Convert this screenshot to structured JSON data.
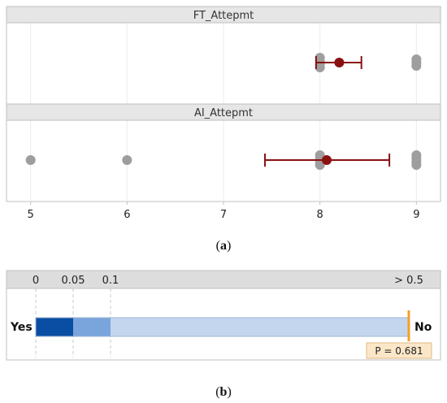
{
  "chart_data": [
    {
      "type": "scatter",
      "panels": [
        {
          "label": "FT_Attepmt",
          "points": [
            8,
            8,
            8,
            8,
            9,
            9,
            9
          ],
          "mean": 8.2,
          "ci": [
            7.96,
            8.43
          ]
        },
        {
          "label": "AI_Attepmt",
          "points": [
            5,
            6,
            8,
            8,
            8,
            8,
            9,
            9,
            9,
            9
          ],
          "mean": 8.07,
          "ci": [
            7.43,
            8.72
          ]
        }
      ],
      "xticks": [
        "5",
        "6",
        "7",
        "8",
        "9"
      ],
      "xlim": [
        4.75,
        9.25
      ],
      "grid": true,
      "colors": {
        "points": "#9e9e9e",
        "mean": "#8b1111",
        "strip": "#e6e6e6"
      },
      "caption": "a"
    },
    {
      "type": "bar",
      "scale_ticks": [
        "0",
        "0.05",
        "0.1",
        "> 0.5"
      ],
      "scale_values": [
        0,
        0.05,
        0.1,
        0.5
      ],
      "left_label": "Yes",
      "right_label": "No",
      "p_value": 0.681,
      "p_label": "P = 0.681",
      "colors": {
        "dark": "#0a4ea3",
        "mid": "#7aa5dc",
        "light": "#c3d6ee",
        "marker": "#f0a02a",
        "label_bg": "#fbe7c8"
      },
      "caption": "b"
    }
  ]
}
